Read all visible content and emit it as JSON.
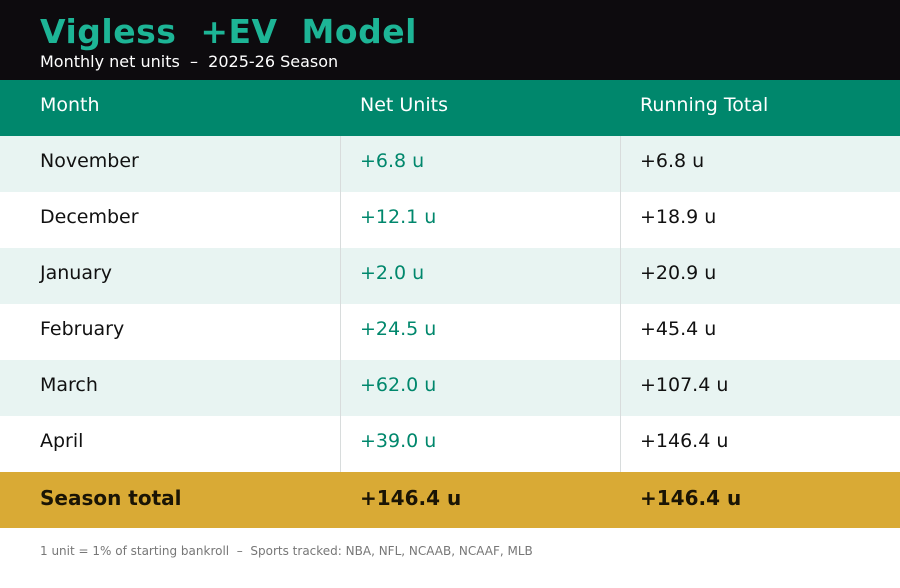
{
  "header": {
    "title": "Vigless  +EV  Model",
    "subtitle": "Monthly net units  –  2025-26 Season"
  },
  "chart_data": {
    "type": "table",
    "columns": [
      "Month",
      "Net Units",
      "Running Total"
    ],
    "rows": [
      {
        "month": "November",
        "net": "+6.8 u",
        "running": "+6.8 u"
      },
      {
        "month": "December",
        "net": "+12.1 u",
        "running": "+18.9 u"
      },
      {
        "month": "January",
        "net": "+2.0 u",
        "running": "+20.9 u"
      },
      {
        "month": "February",
        "net": "+24.5 u",
        "running": "+45.4 u"
      },
      {
        "month": "March",
        "net": "+62.0 u",
        "running": "+107.4 u"
      },
      {
        "month": "April",
        "net": "+39.0 u",
        "running": "+146.4 u"
      }
    ],
    "total": {
      "label": "Season total",
      "net": "+146.4 u",
      "running": "+146.4 u"
    }
  },
  "footnote": "1 unit = 1% of starting bankroll  –  Sports tracked: NBA, NFL, NCAAB, NCAAF, MLB",
  "colors": {
    "header_bg": "#0d0b0e",
    "title": "#1db596",
    "column_header_bg": "#00876c",
    "net_units_text": "#00876c",
    "alt_row_bg": "#e8f4f2",
    "total_row_bg": "#d9aa35"
  }
}
